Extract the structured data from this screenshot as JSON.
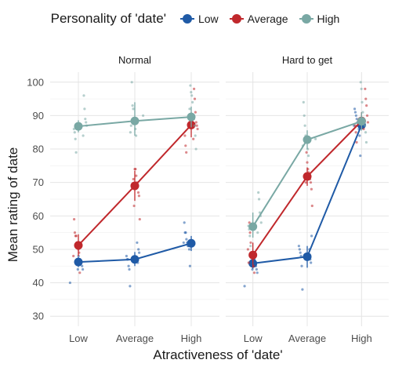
{
  "chart_data": {
    "type": "line",
    "legend": {
      "title": "Personality of 'date'",
      "position": "top",
      "entries": [
        {
          "name": "Low",
          "color": "#1f5aa6"
        },
        {
          "name": "Average",
          "color": "#c0282c"
        },
        {
          "name": "High",
          "color": "#79a8a4"
        }
      ]
    },
    "xlabel": "Atractiveness of 'date'",
    "ylabel": "Mean rating of date",
    "categories": [
      "Low",
      "Average",
      "High"
    ],
    "ylim": [
      27,
      103
    ],
    "yticks": [
      30,
      40,
      50,
      60,
      70,
      80,
      90,
      100
    ],
    "grid": true,
    "panels": [
      {
        "title": "Normal",
        "series": [
          {
            "name": "Low",
            "color": "#1f5aa6",
            "means": [
              46.2,
              47.0,
              51.8
            ],
            "ci": [
              [
                44.7,
                47.7
              ],
              [
                45.0,
                49.2
              ],
              [
                49.5,
                54.0
              ]
            ],
            "raw": [
              [
                40,
                44,
                45,
                46,
                46,
                47,
                47,
                48,
                44,
                46
              ],
              [
                39,
                44,
                45,
                47,
                47,
                48,
                49,
                50,
                46,
                52
              ],
              [
                45,
                50,
                51,
                51,
                52,
                53,
                55,
                55,
                58,
                52
              ]
            ]
          },
          {
            "name": "Average",
            "color": "#c0282c",
            "means": [
              51.2,
              69.0,
              87.2
            ],
            "ci": [
              [
                48.0,
                54.5
              ],
              [
                64.5,
                73.5
              ],
              [
                83.5,
                91.0
              ]
            ],
            "raw": [
              [
                43,
                49,
                50,
                51,
                52,
                54,
                54,
                55,
                59,
                48
              ],
              [
                59,
                66,
                67,
                69,
                70,
                72,
                74,
                74,
                63,
                71
              ],
              [
                79,
                81,
                84,
                86,
                87,
                88,
                91,
                95,
                98,
                83
              ]
            ]
          },
          {
            "name": "High",
            "color": "#79a8a4",
            "means": [
              86.8,
              88.4,
              89.6
            ],
            "ci": [
              [
                85.0,
                88.6
              ],
              [
                84.0,
                94.0
              ],
              [
                86.5,
                92.7
              ]
            ],
            "raw": [
              [
                79,
                83,
                85,
                86,
                87,
                88,
                89,
                92,
                96,
                84
              ],
              [
                84,
                86,
                88,
                89,
                92,
                93,
                100,
                87,
                85,
                90
              ],
              [
                80,
                84,
                87,
                89,
                90,
                94,
                96,
                97,
                99,
                92
              ]
            ]
          }
        ]
      },
      {
        "title": "Hard to get",
        "series": [
          {
            "name": "Low",
            "color": "#1f5aa6",
            "means": [
              45.8,
              47.8,
              87.2
            ],
            "ci": [
              [
                44.2,
                47.4
              ],
              [
                44.5,
                51.0
              ],
              [
                85.8,
                88.6
              ]
            ],
            "raw": [
              [
                39,
                43,
                44,
                45,
                46,
                47,
                47,
                48,
                44,
                49
              ],
              [
                38,
                45,
                48,
                49,
                50,
                51,
                54,
                46,
                47,
                50
              ],
              [
                78,
                84,
                86,
                87,
                88,
                89,
                90,
                91,
                92,
                87
              ]
            ]
          },
          {
            "name": "Average",
            "color": "#c0282c",
            "means": [
              48.3,
              71.8,
              88.4
            ],
            "ci": [
              [
                44.5,
                52.0
              ],
              [
                69.0,
                74.5
              ],
              [
                86.0,
                91.0
              ]
            ],
            "raw": [
              [
                43,
                45,
                47,
                48,
                49,
                52,
                55,
                58,
                46,
                50
              ],
              [
                63,
                68,
                70,
                71,
                72,
                73,
                74,
                76,
                79,
                70
              ],
              [
                82,
                85,
                87,
                88,
                90,
                93,
                95,
                98,
                88,
                86
              ]
            ]
          },
          {
            "name": "High",
            "color": "#79a8a4",
            "means": [
              56.8,
              82.8,
              88.3
            ],
            "ci": [
              [
                53.5,
                61.0
              ],
              [
                80.0,
                85.6
              ],
              [
                85.5,
                91.0
              ]
            ],
            "raw": [
              [
                51,
                54,
                56,
                57,
                58,
                60,
                61,
                65,
                67,
                55
              ],
              [
                78,
                80,
                82,
                83,
                84,
                87,
                90,
                94,
                81,
                83
              ],
              [
                82,
                85,
                87,
                88,
                89,
                91,
                94,
                98,
                100,
                88
              ]
            ]
          }
        ]
      }
    ]
  }
}
